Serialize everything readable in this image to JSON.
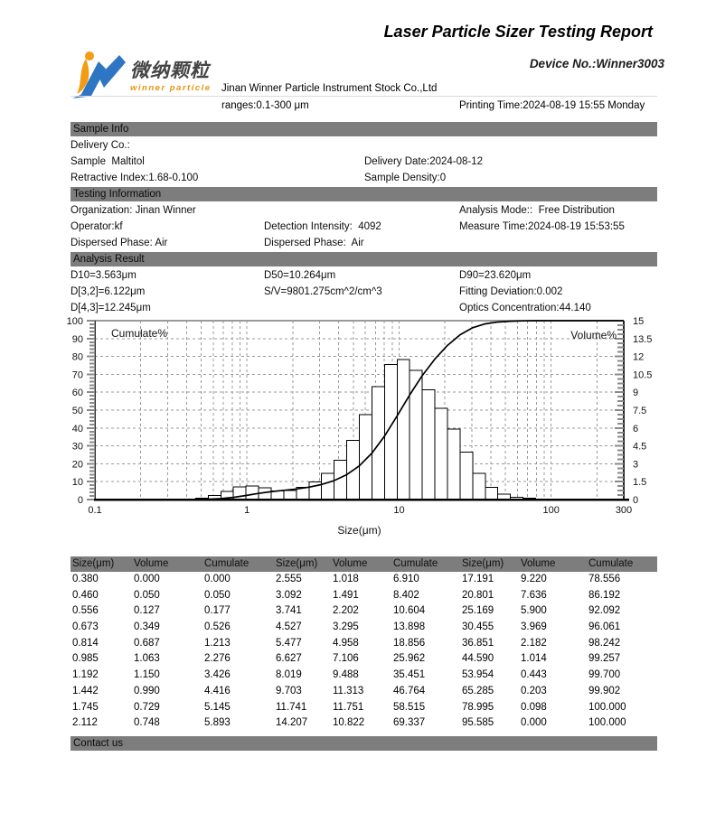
{
  "header": {
    "title": "Laser Particle Sizer Testing Report",
    "device_no": "Device No.:Winner3003",
    "company": "Jinan Winner Particle Instrument Stock Co.,Ltd",
    "ranges": "ranges:0.1-300 μm",
    "printing_time": "Printing Time:2024-08-19 15:55 Monday",
    "logo": {
      "cn": "微纳颗粒",
      "en": "winner particle"
    }
  },
  "sample_info": {
    "heading": "Sample Info",
    "delivery_co": "Delivery Co.:",
    "sample": "Sample  Maltitol",
    "delivery_date": "Delivery Date:2024-08-12",
    "retractive_index": "Retractive Index:1.68-0.100",
    "sample_density": "Sample Density:0"
  },
  "testing_information": {
    "heading": "Testing Information",
    "organization": "Organization: Jinan Winner",
    "analysis_mode": "Analysis Mode::  Free Distribution",
    "operator": "Operator:kf",
    "detection_intensity": "Detection Intensity:  4092",
    "measure_time": "Measure Time:2024-08-19 15:53:55",
    "dispersed_phase_1": "Dispersed Phase: Air",
    "dispersed_phase_2": "Dispersed Phase:  Air"
  },
  "analysis_result": {
    "heading": "Analysis Result",
    "d10": "D10=3.563μm",
    "d50": "D50=10.264μm",
    "d90": "D90=23.620μm",
    "d32": "D[3,2]=6.122μm",
    "sv": "S/V=9801.275cm^2/cm^3",
    "fitting_deviation": "Fitting Deviation:0.002",
    "d43": "D[4,3]=12.245μm",
    "optics_concentration": "Optics Concentration:44.140"
  },
  "contact": {
    "heading": "Contact us"
  },
  "chart_data": {
    "type": "bar",
    "subtype": "log-histogram-with-cumulative-line",
    "xlabel": "Size(μm)",
    "left_axis_label": "Cumulate%",
    "right_axis_label": "Volume%",
    "x_scale": "log",
    "xlim": [
      0.1,
      300
    ],
    "left_ylim": [
      0,
      100
    ],
    "right_ylim": [
      0,
      15
    ],
    "xticks": [
      "0.1",
      "1",
      "10",
      "100",
      "300"
    ],
    "left_yticks": [
      0,
      10,
      20,
      30,
      40,
      50,
      60,
      70,
      80,
      90,
      100
    ],
    "right_yticks": [
      0,
      1.5,
      3,
      4.5,
      6,
      7.5,
      9,
      10.5,
      12,
      13.5,
      15
    ],
    "grid": true,
    "sizes": [
      0.38,
      0.46,
      0.556,
      0.673,
      0.814,
      0.985,
      1.192,
      1.442,
      1.745,
      2.112,
      2.555,
      3.092,
      3.741,
      4.527,
      5.477,
      6.627,
      8.019,
      9.703,
      11.741,
      14.207,
      17.191,
      20.801,
      25.169,
      30.455,
      36.851,
      44.59,
      53.954,
      65.285,
      78.995,
      95.585
    ],
    "series": [
      {
        "name": "Volume%",
        "axis": "right",
        "style": "bars",
        "values": [
          0.0,
          0.05,
          0.127,
          0.349,
          0.687,
          1.063,
          1.15,
          0.99,
          0.729,
          0.748,
          1.018,
          1.491,
          2.202,
          3.295,
          4.958,
          7.106,
          9.488,
          11.313,
          11.751,
          10.822,
          9.22,
          7.636,
          5.9,
          3.969,
          2.182,
          1.014,
          0.443,
          0.203,
          0.098,
          0.0
        ]
      },
      {
        "name": "Cumulate%",
        "axis": "left",
        "style": "line",
        "values": [
          0.0,
          0.05,
          0.177,
          0.526,
          1.213,
          2.276,
          3.426,
          4.416,
          5.145,
          5.893,
          6.91,
          8.402,
          10.604,
          13.898,
          18.856,
          25.962,
          35.451,
          46.764,
          58.515,
          69.337,
          78.556,
          86.192,
          92.092,
          96.061,
          98.242,
          99.257,
          99.7,
          99.902,
          100.0,
          100.0
        ]
      }
    ]
  },
  "table": {
    "headers": [
      "Size(μm)",
      "Volume",
      "Cumulate",
      "Size(μm)",
      "Volume",
      "Cumulate",
      "Size(μm)",
      "Volume",
      "Cumulate"
    ],
    "rows": [
      [
        "0.380",
        "0.000",
        "0.000",
        "2.555",
        "1.018",
        "6.910",
        "17.191",
        "9.220",
        "78.556"
      ],
      [
        "0.460",
        "0.050",
        "0.050",
        "3.092",
        "1.491",
        "8.402",
        "20.801",
        "7.636",
        "86.192"
      ],
      [
        "0.556",
        "0.127",
        "0.177",
        "3.741",
        "2.202",
        "10.604",
        "25.169",
        "5.900",
        "92.092"
      ],
      [
        "0.673",
        "0.349",
        "0.526",
        "4.527",
        "3.295",
        "13.898",
        "30.455",
        "3.969",
        "96.061"
      ],
      [
        "0.814",
        "0.687",
        "1.213",
        "5.477",
        "4.958",
        "18.856",
        "36.851",
        "2.182",
        "98.242"
      ],
      [
        "0.985",
        "1.063",
        "2.276",
        "6.627",
        "7.106",
        "25.962",
        "44.590",
        "1.014",
        "99.257"
      ],
      [
        "1.192",
        "1.150",
        "3.426",
        "8.019",
        "9.488",
        "35.451",
        "53.954",
        "0.443",
        "99.700"
      ],
      [
        "1.442",
        "0.990",
        "4.416",
        "9.703",
        "11.313",
        "46.764",
        "65.285",
        "0.203",
        "99.902"
      ],
      [
        "1.745",
        "0.729",
        "5.145",
        "11.741",
        "11.751",
        "58.515",
        "78.995",
        "0.098",
        "100.000"
      ],
      [
        "2.112",
        "0.748",
        "5.893",
        "14.207",
        "10.822",
        "69.337",
        "95.585",
        "0.000",
        "100.000"
      ]
    ]
  },
  "colors": {
    "section_bar": "#7d7d7d",
    "logo_orange": "#f39c12",
    "logo_blue": "#2e75c3",
    "grid": "#9a9a9a"
  }
}
